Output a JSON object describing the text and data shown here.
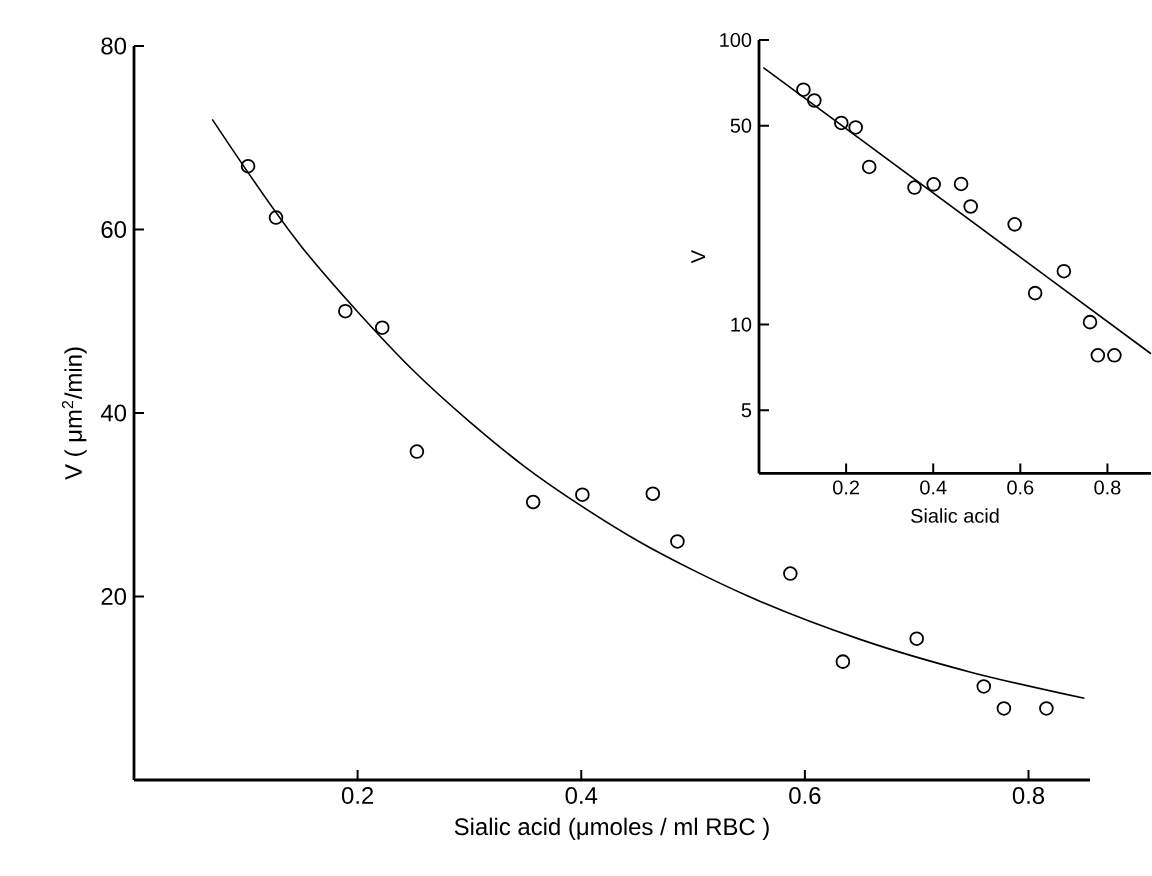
{
  "chart_data": [
    {
      "type": "scatter",
      "xlabel": "Sialic  acid   (μmoles / ml RBC )",
      "ylabel": "V  ( μm$^{2}$/min)",
      "x": [
        0.102,
        0.127,
        0.189,
        0.222,
        0.253,
        0.357,
        0.401,
        0.464,
        0.486,
        0.587,
        0.634,
        0.7,
        0.76,
        0.778,
        0.816
      ],
      "series": [
        {
          "marker": "circle",
          "color": "#000000",
          "values": [
            66.9,
            61.3,
            51.1,
            49.3,
            35.8,
            30.3,
            31.1,
            31.2,
            26.0,
            22.5,
            12.9,
            15.4,
            10.2,
            7.8,
            7.8
          ]
        },
        {
          "type": "line",
          "marker": "none",
          "color": "#000000",
          "x": [
            0.07,
            0.15,
            0.25,
            0.35,
            0.45,
            0.55,
            0.65,
            0.75,
            0.85
          ],
          "values": [
            72,
            58.1,
            44.6,
            34.1,
            26.1,
            20.0,
            15.3,
            11.7,
            8.9
          ]
        }
      ],
      "xlim": [
        0,
        0.855
      ],
      "ylim": [
        0,
        80
      ],
      "xticks": [
        0.2,
        0.4,
        0.6,
        0.8
      ],
      "yticks": [
        20,
        40,
        60,
        80
      ]
    },
    {
      "type": "scatter",
      "xlabel": "Sialic acid",
      "ylabel": "V",
      "log": "y",
      "x": [
        0.102,
        0.127,
        0.189,
        0.222,
        0.253,
        0.357,
        0.401,
        0.464,
        0.486,
        0.587,
        0.634,
        0.7,
        0.76,
        0.778,
        0.816
      ],
      "series": [
        {
          "marker": "circle",
          "color": "#000000",
          "values": [
            66.9,
            61.3,
            51.1,
            49.3,
            35.8,
            30.3,
            31.1,
            31.2,
            26.0,
            22.5,
            12.9,
            15.4,
            10.2,
            7.8,
            7.8
          ]
        },
        {
          "type": "line",
          "marker": "none",
          "color": "#000000",
          "x": [
            0.01,
            0.9
          ],
          "values": [
            80,
            7.9
          ]
        }
      ],
      "xlim": [
        0,
        0.9
      ],
      "ylim": [
        3,
        100
      ],
      "xticks": [
        0.2,
        0.4,
        0.6,
        0.8
      ],
      "yticks": [
        5,
        10,
        50,
        100
      ]
    }
  ]
}
